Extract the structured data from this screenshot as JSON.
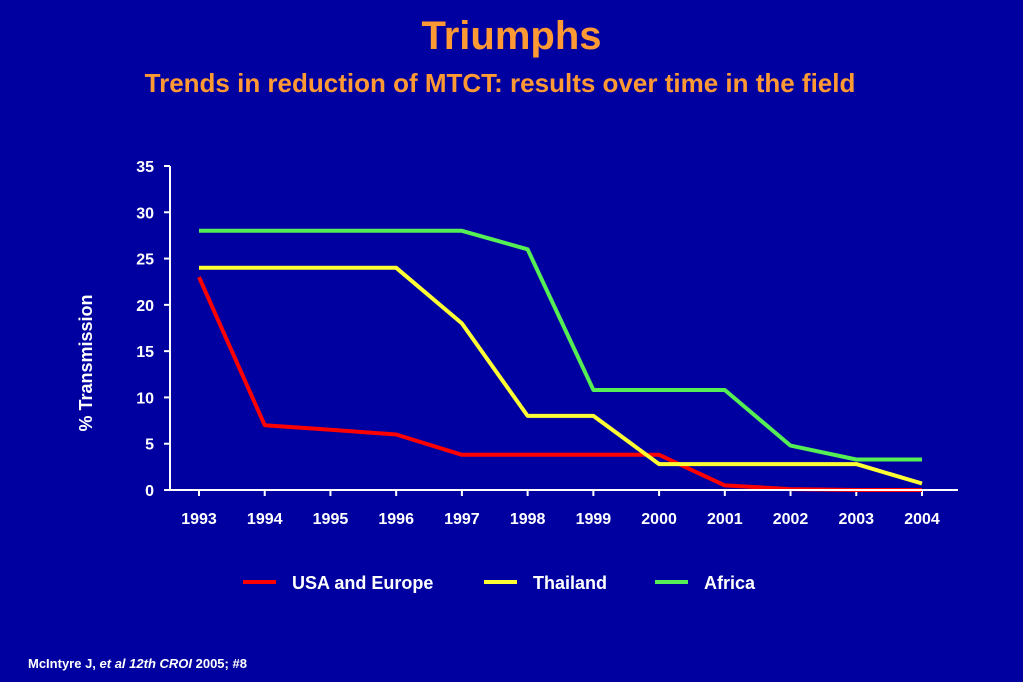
{
  "slide": {
    "title": "Triumphs",
    "subtitle": "Trends in reduction of MTCT: results over time in the field",
    "citation": {
      "author": "McIntyre J, ",
      "italic": "et al 12th CROI",
      "rest": " 2005; #8"
    }
  },
  "chart_data": {
    "type": "line",
    "ylabel": "% Transmission",
    "xlabel": "",
    "x": [
      "1993",
      "1994",
      "1995",
      "1996",
      "1997",
      "1998",
      "1999",
      "2000",
      "2001",
      "2002",
      "2003",
      "2004"
    ],
    "ylim": [
      0,
      35
    ],
    "yticks": [
      0,
      5,
      10,
      15,
      20,
      25,
      30,
      35
    ],
    "legend_position": "bottom",
    "series": [
      {
        "name": "USA and Europe",
        "color": "#ff0000",
        "values": [
          23,
          7,
          6.5,
          6,
          3.8,
          3.8,
          3.8,
          3.8,
          0.5,
          0.1,
          0,
          0
        ]
      },
      {
        "name": "Thailand",
        "color": "#ffff33",
        "values": [
          24,
          24,
          24,
          24,
          18,
          8,
          8,
          2.8,
          2.8,
          2.8,
          2.8,
          0.7
        ]
      },
      {
        "name": "Africa",
        "color": "#55ee55",
        "values": [
          28,
          28,
          28,
          28,
          28,
          26,
          10.8,
          10.8,
          10.8,
          4.8,
          3.3,
          3.3
        ]
      }
    ]
  }
}
